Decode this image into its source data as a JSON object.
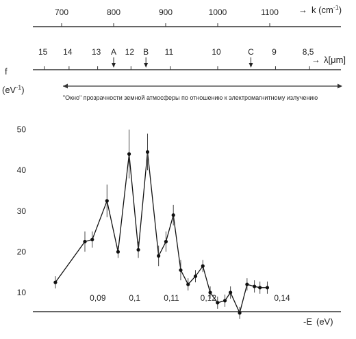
{
  "chart_data": {
    "type": "line",
    "x_axis": {
      "label": "-E",
      "unit": "(eV)",
      "range": [
        0.077,
        0.147
      ],
      "ticks": [
        0.09,
        0.1,
        0.11,
        0.12,
        0.14
      ],
      "tick_labels": [
        "0,09",
        "0,1",
        "0,11",
        "0,12",
        "0,14"
      ]
    },
    "y_axis": {
      "label": "f",
      "unit": "(eV-1)",
      "unit_base": "(eV",
      "unit_sup": "-1",
      "unit_close": ")",
      "range": [
        5,
        55
      ],
      "ticks": [
        10,
        20,
        30,
        40,
        50
      ]
    },
    "k_axis": {
      "label": "k (cm-1)",
      "label_base": "k (cm",
      "label_sup": "-1",
      "label_close": ")",
      "range": [
        632,
        1222
      ],
      "ticks": [
        700,
        800,
        900,
        1000,
        1100
      ]
    },
    "lambda_axis": {
      "label": "λ[μm]",
      "ticks": [
        "15",
        "14",
        "13",
        "12",
        "11",
        "10",
        "9",
        "8,5"
      ],
      "tick_values": [
        15,
        14,
        13,
        12,
        11,
        10,
        9,
        8.5
      ]
    },
    "markers": [
      {
        "label": "A",
        "lambda": 12.5
      },
      {
        "label": "B",
        "lambda": 11.6
      },
      {
        "label": "C",
        "lambda": 9.4
      }
    ],
    "window_note": "\"Окно\" прозрачности земной атмосферы по отношению к электромагнитному излучению",
    "series": [
      {
        "x": [
          0.0785,
          0.0865,
          0.0885,
          0.0925,
          0.0955,
          0.0985,
          0.101,
          0.1035,
          0.1065,
          0.1085,
          0.1105,
          0.1125,
          0.1145,
          0.1165,
          0.1185,
          0.1205,
          0.1225,
          0.1245,
          0.126,
          0.1285,
          0.1305,
          0.1325,
          0.134,
          0.136
        ],
        "y": [
          12.5,
          22.5,
          23.0,
          32.5,
          20.0,
          44.0,
          20.5,
          44.5,
          19.0,
          22.5,
          29.0,
          15.5,
          12.0,
          14.0,
          16.5,
          10.0,
          7.5,
          8.0,
          10.0,
          5.0,
          12.0,
          11.5,
          11.2,
          11.2
        ],
        "err": [
          1.5,
          2.5,
          2.0,
          4.0,
          1.5,
          6.0,
          2.0,
          4.5,
          2.5,
          2.5,
          2.5,
          2.5,
          1.5,
          1.5,
          1.5,
          1.5,
          1.5,
          1.5,
          1.5,
          1.5,
          1.5,
          1.5,
          1.5,
          1.5
        ]
      }
    ]
  }
}
